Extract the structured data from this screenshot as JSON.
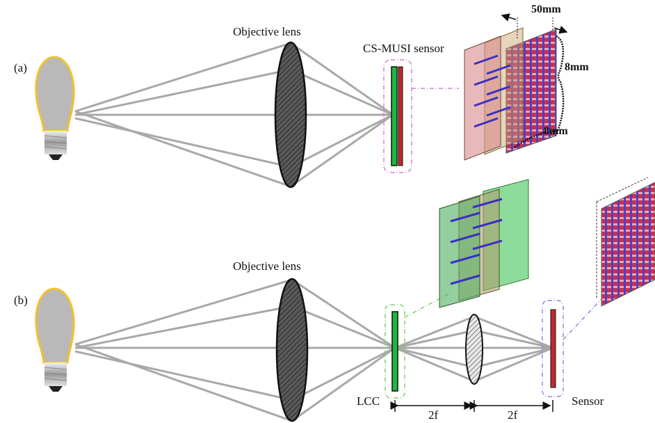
{
  "panel_a": {
    "label": "(a)",
    "lens_label": "Objective lens",
    "sensor_label": "CS-MUSI sensor",
    "dim_thickness": "50mm",
    "dim_height": "8mm",
    "dim_width": "8mm"
  },
  "panel_b": {
    "label": "(b)",
    "lens_label": "Objective lens",
    "lcc_label": "LCC",
    "sensor_label": "Sensor",
    "gap_1": "2f",
    "gap_2": "2f"
  },
  "colors": {
    "bulb_fill": "#b9b9b9",
    "bulb_outline": "#f2c22e",
    "ray": "#a8a8a8",
    "lcc_green": "#1fb83c",
    "sensor_red": "#c0282e",
    "callout_magenta": "#d77fd9",
    "callout_green": "#7fcf6a",
    "callout_blue": "#8a8ad8",
    "arrow_blue": "#3b2fc4"
  }
}
